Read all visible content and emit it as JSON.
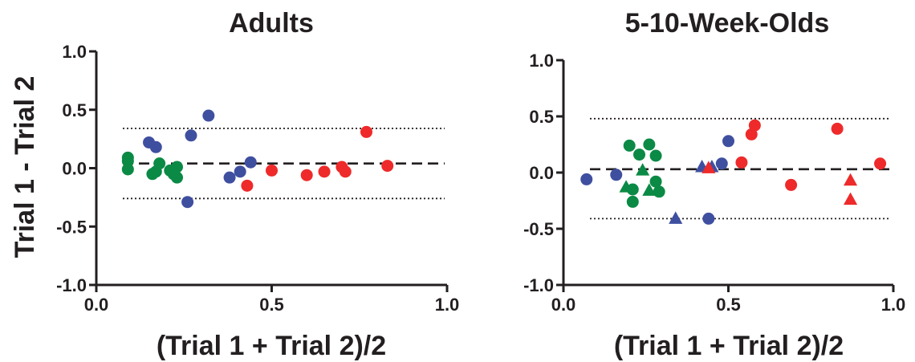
{
  "colors": {
    "green": "#0a8a45",
    "blue": "#3f4fa0",
    "red": "#ee2a2a",
    "ink": "#231f20"
  },
  "chart_data": [
    {
      "type": "scatter",
      "title": "Adults",
      "xlabel": "(Trial 1 + Trial 2)/2",
      "ylabel": "Trial 1 - Trial 2",
      "xlim": [
        0,
        1
      ],
      "ylim": [
        -1,
        1
      ],
      "xticks": [
        "0.0",
        "0.5",
        "1.0"
      ],
      "yticks": [
        "1.0",
        "0.5",
        "0.0",
        "-0.5",
        "-1.0"
      ],
      "grid": false,
      "reference_lines": {
        "mean": 0.04,
        "upper_limit": 0.34,
        "lower_limit": -0.26
      },
      "points": [
        {
          "x": 0.09,
          "y": 0.09,
          "color": "green",
          "shape": "circle"
        },
        {
          "x": 0.09,
          "y": 0.06,
          "color": "green",
          "shape": "circle"
        },
        {
          "x": 0.09,
          "y": -0.01,
          "color": "green",
          "shape": "circle"
        },
        {
          "x": 0.16,
          "y": -0.05,
          "color": "green",
          "shape": "circle"
        },
        {
          "x": 0.17,
          "y": -0.03,
          "color": "green",
          "shape": "circle"
        },
        {
          "x": 0.18,
          "y": 0.04,
          "color": "green",
          "shape": "circle"
        },
        {
          "x": 0.21,
          "y": -0.02,
          "color": "green",
          "shape": "circle"
        },
        {
          "x": 0.22,
          "y": -0.05,
          "color": "green",
          "shape": "circle"
        },
        {
          "x": 0.23,
          "y": 0.01,
          "color": "green",
          "shape": "circle"
        },
        {
          "x": 0.23,
          "y": -0.08,
          "color": "green",
          "shape": "circle"
        },
        {
          "x": 0.15,
          "y": 0.22,
          "color": "blue",
          "shape": "circle"
        },
        {
          "x": 0.17,
          "y": 0.18,
          "color": "blue",
          "shape": "circle"
        },
        {
          "x": 0.26,
          "y": -0.29,
          "color": "blue",
          "shape": "circle"
        },
        {
          "x": 0.27,
          "y": 0.28,
          "color": "blue",
          "shape": "circle"
        },
        {
          "x": 0.32,
          "y": 0.45,
          "color": "blue",
          "shape": "circle"
        },
        {
          "x": 0.38,
          "y": -0.08,
          "color": "blue",
          "shape": "circle"
        },
        {
          "x": 0.41,
          "y": -0.03,
          "color": "blue",
          "shape": "circle"
        },
        {
          "x": 0.44,
          "y": 0.05,
          "color": "blue",
          "shape": "circle"
        },
        {
          "x": 0.43,
          "y": -0.15,
          "color": "red",
          "shape": "circle"
        },
        {
          "x": 0.5,
          "y": -0.02,
          "color": "red",
          "shape": "circle"
        },
        {
          "x": 0.6,
          "y": -0.06,
          "color": "red",
          "shape": "circle"
        },
        {
          "x": 0.65,
          "y": -0.03,
          "color": "red",
          "shape": "circle"
        },
        {
          "x": 0.7,
          "y": 0.01,
          "color": "red",
          "shape": "circle"
        },
        {
          "x": 0.71,
          "y": -0.03,
          "color": "red",
          "shape": "circle"
        },
        {
          "x": 0.77,
          "y": 0.31,
          "color": "red",
          "shape": "circle"
        },
        {
          "x": 0.83,
          "y": 0.02,
          "color": "red",
          "shape": "circle"
        }
      ]
    },
    {
      "type": "scatter",
      "title": "5-10-Week-Olds",
      "xlabel": "(Trial 1 + Trial 2)/2",
      "ylabel": "",
      "xlim": [
        0,
        1
      ],
      "ylim": [
        -1,
        1
      ],
      "xticks": [
        "0.0",
        "0.5",
        "1.0"
      ],
      "yticks": [
        "1.0",
        "0.5",
        "0.0",
        "-0.5",
        "-1.0"
      ],
      "grid": false,
      "reference_lines": {
        "mean": 0.03,
        "upper_limit": 0.48,
        "lower_limit": -0.41
      },
      "points": [
        {
          "x": 0.2,
          "y": 0.24,
          "color": "green",
          "shape": "circle"
        },
        {
          "x": 0.23,
          "y": 0.16,
          "color": "green",
          "shape": "circle"
        },
        {
          "x": 0.26,
          "y": 0.25,
          "color": "green",
          "shape": "circle"
        },
        {
          "x": 0.28,
          "y": 0.15,
          "color": "green",
          "shape": "circle"
        },
        {
          "x": 0.28,
          "y": -0.08,
          "color": "green",
          "shape": "circle"
        },
        {
          "x": 0.21,
          "y": -0.15,
          "color": "green",
          "shape": "circle"
        },
        {
          "x": 0.21,
          "y": -0.26,
          "color": "green",
          "shape": "circle"
        },
        {
          "x": 0.29,
          "y": -0.17,
          "color": "green",
          "shape": "circle"
        },
        {
          "x": 0.19,
          "y": -0.13,
          "color": "green",
          "shape": "triangle"
        },
        {
          "x": 0.24,
          "y": 0.02,
          "color": "green",
          "shape": "triangle"
        },
        {
          "x": 0.26,
          "y": -0.16,
          "color": "green",
          "shape": "triangle"
        },
        {
          "x": 0.07,
          "y": -0.06,
          "color": "blue",
          "shape": "circle"
        },
        {
          "x": 0.16,
          "y": -0.02,
          "color": "blue",
          "shape": "circle"
        },
        {
          "x": 0.44,
          "y": -0.41,
          "color": "blue",
          "shape": "circle"
        },
        {
          "x": 0.48,
          "y": 0.08,
          "color": "blue",
          "shape": "circle"
        },
        {
          "x": 0.5,
          "y": 0.28,
          "color": "blue",
          "shape": "circle"
        },
        {
          "x": 0.34,
          "y": -0.41,
          "color": "blue",
          "shape": "triangle"
        },
        {
          "x": 0.42,
          "y": 0.05,
          "color": "blue",
          "shape": "triangle"
        },
        {
          "x": 0.45,
          "y": 0.05,
          "color": "blue",
          "shape": "triangle"
        },
        {
          "x": 0.44,
          "y": 0.04,
          "color": "red",
          "shape": "triangle"
        },
        {
          "x": 0.54,
          "y": 0.09,
          "color": "red",
          "shape": "circle"
        },
        {
          "x": 0.57,
          "y": 0.34,
          "color": "red",
          "shape": "circle"
        },
        {
          "x": 0.58,
          "y": 0.42,
          "color": "red",
          "shape": "circle"
        },
        {
          "x": 0.69,
          "y": -0.11,
          "color": "red",
          "shape": "circle"
        },
        {
          "x": 0.83,
          "y": 0.39,
          "color": "red",
          "shape": "circle"
        },
        {
          "x": 0.96,
          "y": 0.08,
          "color": "red",
          "shape": "circle"
        },
        {
          "x": 0.87,
          "y": -0.07,
          "color": "red",
          "shape": "triangle"
        },
        {
          "x": 0.87,
          "y": -0.24,
          "color": "red",
          "shape": "triangle"
        }
      ]
    }
  ]
}
